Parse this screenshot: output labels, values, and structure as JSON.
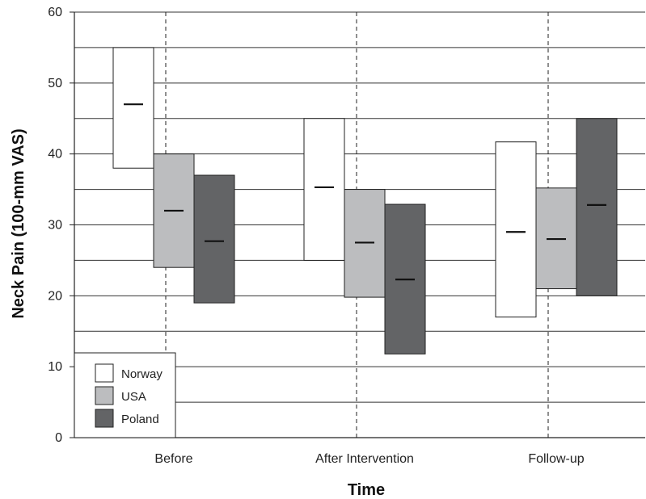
{
  "chart_data": {
    "type": "floating-bar",
    "xlabel": "Time",
    "ylabel": "Neck Pain (100-mm VAS)",
    "ylim": [
      0,
      60
    ],
    "yticks": [
      0,
      10,
      20,
      30,
      40,
      50,
      60
    ],
    "grid_y": [
      5,
      10,
      15,
      20,
      25,
      30,
      35,
      40,
      45,
      50,
      55,
      60
    ],
    "categories": [
      "Before",
      "After Intervention",
      "Follow-up"
    ],
    "series": [
      {
        "name": "Norway",
        "color": "#ffffff",
        "low": [
          38,
          25,
          17
        ],
        "high": [
          55,
          45,
          41.7
        ],
        "mid": [
          47,
          35.3,
          29
        ]
      },
      {
        "name": "USA",
        "color": "#bcbdbf",
        "low": [
          24,
          19.8,
          21
        ],
        "high": [
          40,
          35,
          35.2
        ],
        "mid": [
          32,
          27.5,
          28
        ]
      },
      {
        "name": "Poland",
        "color": "#636466",
        "low": [
          19,
          11.8,
          20
        ],
        "high": [
          37,
          32.9,
          45
        ],
        "mid": [
          27.7,
          22.3,
          32.8
        ]
      }
    ],
    "legend_position": "bottom-left"
  }
}
